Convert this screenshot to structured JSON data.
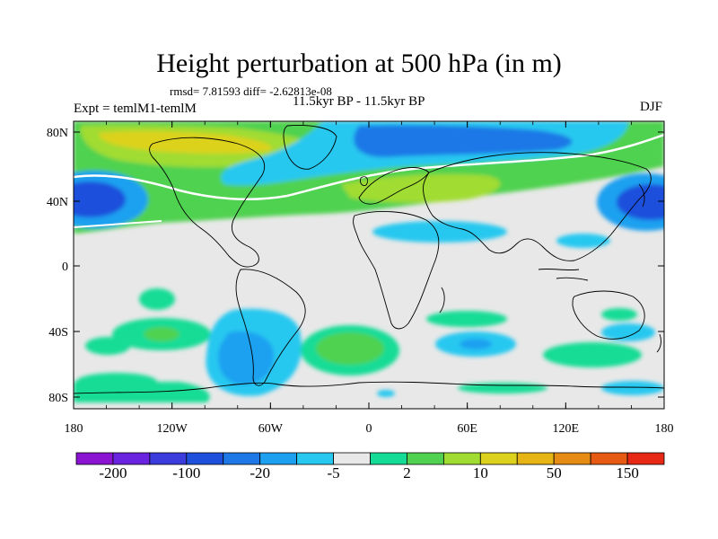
{
  "title": "Height perturbation at 500 hPa (in m)",
  "stats_line": "rmsd= 7.81593 diff= -2.62813e-08",
  "experiment_label": "Expt = temlM1-temlM",
  "period_label": "11.5kyr BP - 11.5kyr BP",
  "season_label": "DJF",
  "map": {
    "lon_ticks": [
      "180",
      "120W",
      "60W",
      "0",
      "60E",
      "120E",
      "180"
    ],
    "lat_ticks": [
      "80N",
      "40N",
      "0",
      "40S",
      "80S"
    ],
    "background_color": "#e8e8e8"
  },
  "colorbar": {
    "colors": [
      "#8a14d2",
      "#6a24e0",
      "#3c3cdc",
      "#1e50dc",
      "#1e78e6",
      "#1ea0f0",
      "#28c8f0",
      "#e8e8e8",
      "#14dc96",
      "#50d250",
      "#a0dc32",
      "#dcd21e",
      "#e6b414",
      "#e68c14",
      "#e65a14",
      "#e62814"
    ],
    "labels": [
      "-200",
      "-100",
      "-20",
      "-5",
      "2",
      "10",
      "50",
      "150"
    ]
  }
}
